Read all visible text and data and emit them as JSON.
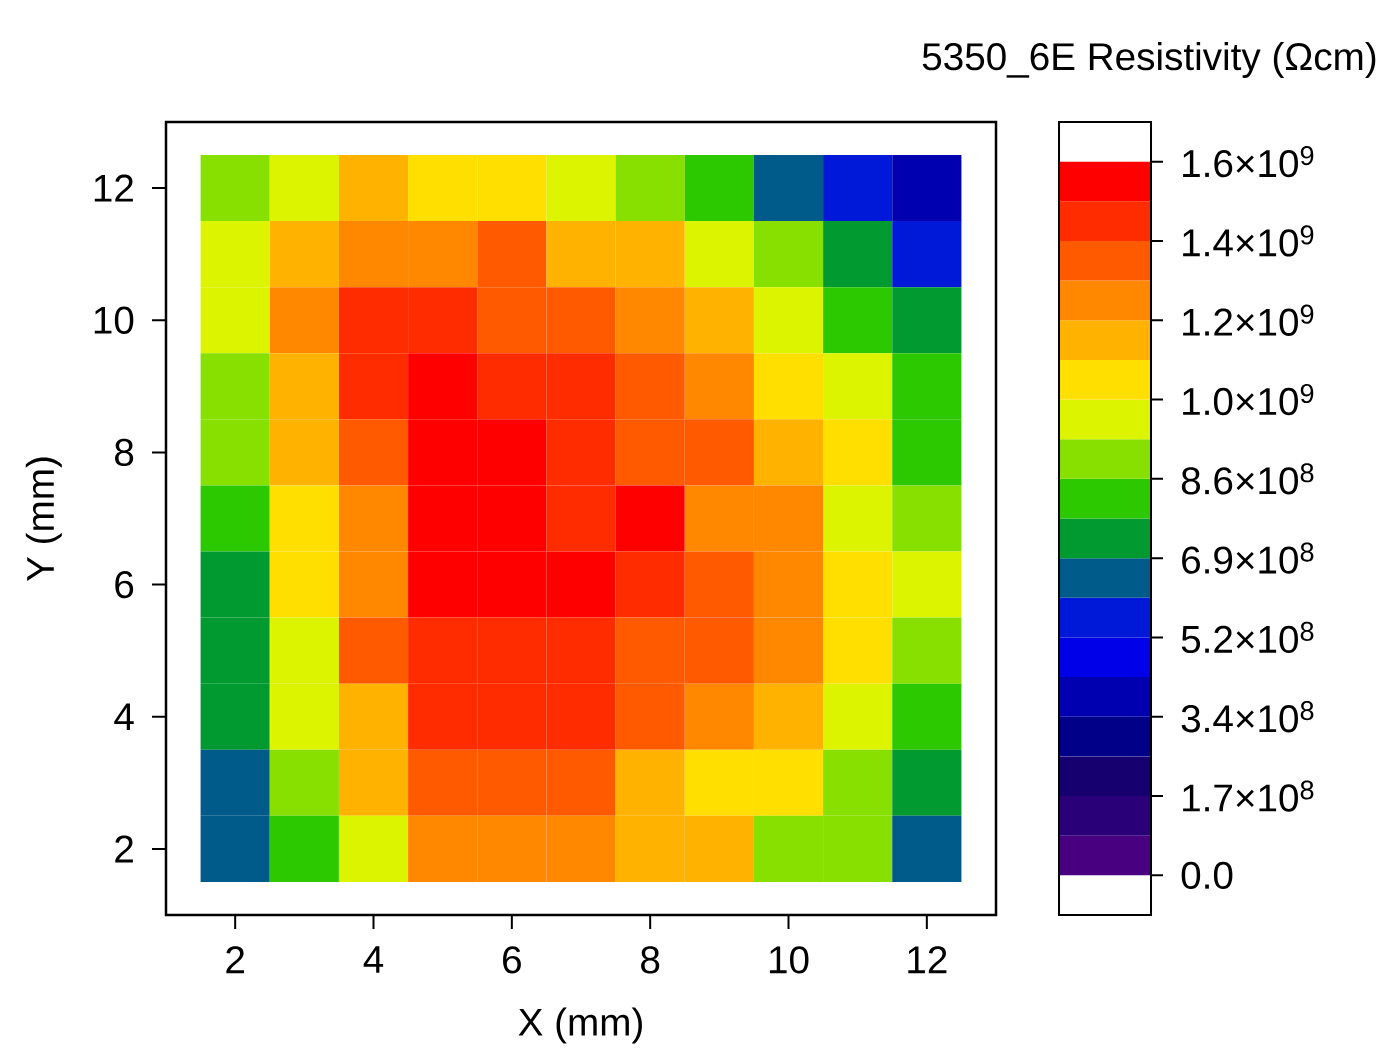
{
  "chart_data": {
    "type": "heatmap",
    "title": "5350_6E Resistivity (Ωcm)",
    "xlabel": "X (mm)",
    "ylabel": "Y (mm)",
    "x": [
      2,
      3,
      4,
      5,
      6,
      7,
      8,
      9,
      10,
      11,
      12
    ],
    "y": [
      12,
      11,
      10,
      9,
      8,
      7,
      6,
      5,
      4,
      3,
      2
    ],
    "xlim": [
      1,
      13
    ],
    "ylim": [
      1,
      13
    ],
    "xticks": [
      2,
      4,
      6,
      8,
      10,
      12
    ],
    "yticks": [
      2,
      4,
      6,
      8,
      10,
      12
    ],
    "cells": [
      [
        903000000.0,
        989000000.0,
        1161000000.0,
        1075000000.0,
        1075000000.0,
        989000000.0,
        903000000.0,
        817000000.0,
        645000000.0,
        559000000.0,
        387000000.0
      ],
      [
        989000000.0,
        1161000000.0,
        1247000000.0,
        1247000000.0,
        1333000000.0,
        1161000000.0,
        1161000000.0,
        989000000.0,
        903000000.0,
        731000000.0,
        559000000.0
      ],
      [
        989000000.0,
        1247000000.0,
        1419000000.0,
        1419000000.0,
        1333000000.0,
        1333000000.0,
        1247000000.0,
        1161000000.0,
        989000000.0,
        817000000.0,
        731000000.0
      ],
      [
        903000000.0,
        1161000000.0,
        1419000000.0,
        1505000000.0,
        1419000000.0,
        1419000000.0,
        1333000000.0,
        1247000000.0,
        1075000000.0,
        989000000.0,
        817000000.0
      ],
      [
        903000000.0,
        1161000000.0,
        1333000000.0,
        1505000000.0,
        1505000000.0,
        1419000000.0,
        1333000000.0,
        1333000000.0,
        1161000000.0,
        1075000000.0,
        817000000.0
      ],
      [
        817000000.0,
        1075000000.0,
        1247000000.0,
        1505000000.0,
        1505000000.0,
        1419000000.0,
        1505000000.0,
        1247000000.0,
        1247000000.0,
        989000000.0,
        903000000.0
      ],
      [
        731000000.0,
        1075000000.0,
        1247000000.0,
        1505000000.0,
        1505000000.0,
        1505000000.0,
        1419000000.0,
        1333000000.0,
        1247000000.0,
        1075000000.0,
        989000000.0
      ],
      [
        731000000.0,
        989000000.0,
        1333000000.0,
        1419000000.0,
        1419000000.0,
        1419000000.0,
        1333000000.0,
        1333000000.0,
        1247000000.0,
        1075000000.0,
        903000000.0
      ],
      [
        731000000.0,
        989000000.0,
        1161000000.0,
        1419000000.0,
        1419000000.0,
        1419000000.0,
        1333000000.0,
        1247000000.0,
        1161000000.0,
        989000000.0,
        817000000.0
      ],
      [
        645000000.0,
        903000000.0,
        1161000000.0,
        1333000000.0,
        1333000000.0,
        1333000000.0,
        1161000000.0,
        1075000000.0,
        1075000000.0,
        903000000.0,
        731000000.0
      ],
      [
        645000000.0,
        817000000.0,
        989000000.0,
        1247000000.0,
        1247000000.0,
        1247000000.0,
        1161000000.0,
        1161000000.0,
        903000000.0,
        903000000.0,
        645000000.0
      ]
    ],
    "clim": [
      0,
      1550250000.0
    ],
    "cticks": [
      {
        "value": 0,
        "label": "0.0"
      },
      {
        "value": 172250000.0,
        "label": "1.7×10$^{8}$"
      },
      {
        "value": 344500000.0,
        "label": "3.4×10$^{8}$"
      },
      {
        "value": 516750000.0,
        "label": "5.2×10$^{8}$"
      },
      {
        "value": 689000000.0,
        "label": "6.9×10$^{8}$"
      },
      {
        "value": 861250000.0,
        "label": "8.6×10$^{8}$"
      },
      {
        "value": 1033500000.0,
        "label": "1.0×10$^{9}$"
      },
      {
        "value": 1205750000.0,
        "label": "1.2×10$^{9}$"
      },
      {
        "value": 1378000000.0,
        "label": "1.4×10$^{9}$"
      },
      {
        "value": 1550250000.0,
        "label": "1.6×10$^{9}$"
      }
    ]
  }
}
